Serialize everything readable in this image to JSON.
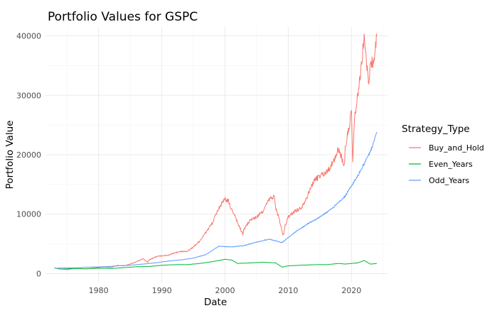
{
  "chart_data": {
    "type": "line",
    "title": "Portfolio Values for GSPC",
    "xlabel": "Date",
    "ylabel": "Portfolio Value",
    "xlim": [
      1971.6,
      2025.7
    ],
    "ylim": [
      -1500,
      41500
    ],
    "x_ticks": [
      1980,
      1990,
      2000,
      2010,
      2020
    ],
    "y_ticks": [
      0,
      10000,
      20000,
      30000,
      40000
    ],
    "grid": true,
    "legend": {
      "title": "Strategy_Type",
      "position": "right"
    },
    "series": [
      {
        "name": "Buy_and_Hold",
        "color": "#F8766D",
        "x": [
          1973.0,
          1974.0,
          1975.0,
          1976.0,
          1977.0,
          1978.0,
          1979.0,
          1980.0,
          1981.0,
          1982.0,
          1983.0,
          1984.0,
          1985.0,
          1986.0,
          1987.0,
          1987.8,
          1988.0,
          1989.0,
          1990.0,
          1991.0,
          1992.0,
          1993.0,
          1994.0,
          1995.0,
          1996.0,
          1997.0,
          1998.0,
          1999.0,
          2000.0,
          2000.5,
          2001.0,
          2001.5,
          2002.0,
          2002.8,
          2003.0,
          2004.0,
          2005.0,
          2006.0,
          2007.0,
          2007.8,
          2008.0,
          2008.5,
          2009.2,
          2009.5,
          2010.0,
          2011.0,
          2012.0,
          2013.0,
          2014.0,
          2015.0,
          2016.0,
          2017.0,
          2018.0,
          2018.9,
          2019.0,
          2019.5,
          2020.0,
          2020.2,
          2020.5,
          2021.0,
          2021.5,
          2022.0,
          2022.5,
          2022.8,
          2023.0,
          2023.5,
          2024.0
        ],
        "values": [
          950,
          800,
          650,
          800,
          850,
          800,
          900,
          1050,
          1100,
          1050,
          1350,
          1300,
          1600,
          2000,
          2500,
          1900,
          2300,
          2800,
          3000,
          3100,
          3500,
          3700,
          3700,
          4500,
          5500,
          7000,
          8500,
          11000,
          12500,
          12200,
          10800,
          10000,
          8500,
          6600,
          7500,
          9000,
          9500,
          10500,
          12500,
          13000,
          11000,
          9500,
          6300,
          8000,
          9500,
          10500,
          11000,
          13000,
          15500,
          16500,
          17000,
          18500,
          21000,
          18000,
          21000,
          24000,
          27000,
          19000,
          26000,
          30000,
          34000,
          40000,
          34000,
          32000,
          36000,
          35000,
          40000
        ]
      },
      {
        "name": "Even_Years",
        "color": "#00BA38",
        "x": [
          1973.0,
          1974.0,
          1976.0,
          1978.0,
          1980.0,
          1982.0,
          1984.0,
          1986.0,
          1988.0,
          1990.0,
          1992.0,
          1994.0,
          1996.0,
          1998.0,
          2000.0,
          2001.0,
          2002.0,
          2004.0,
          2006.0,
          2008.0,
          2009.0,
          2010.0,
          2012.0,
          2014.0,
          2016.0,
          2018.0,
          2019.0,
          2020.0,
          2021.0,
          2022.0,
          2023.0,
          2024.0
        ],
        "values": [
          950,
          750,
          850,
          800,
          900,
          850,
          1000,
          1150,
          1200,
          1400,
          1500,
          1500,
          1700,
          2000,
          2400,
          2300,
          1700,
          1800,
          1900,
          1800,
          1100,
          1300,
          1400,
          1500,
          1500,
          1700,
          1600,
          1700,
          1800,
          2200,
          1600,
          1700
        ]
      },
      {
        "name": "Odd_Years",
        "color": "#619CFF",
        "x": [
          1973.0,
          1975.0,
          1977.0,
          1979.0,
          1981.0,
          1983.0,
          1985.0,
          1987.0,
          1989.0,
          1991.0,
          1993.0,
          1995.0,
          1997.0,
          1999.0,
          2001.0,
          2003.0,
          2005.0,
          2007.0,
          2009.0,
          2011.0,
          2013.0,
          2015.0,
          2017.0,
          2019.0,
          2021.0,
          2023.0,
          2024.0
        ],
        "values": [
          900,
          950,
          1000,
          1100,
          1150,
          1300,
          1400,
          1600,
          1800,
          2100,
          2300,
          2600,
          3200,
          4600,
          4500,
          4700,
          5300,
          5800,
          5200,
          6900,
          8300,
          9500,
          11000,
          13000,
          16500,
          20500,
          23800
        ]
      }
    ]
  }
}
